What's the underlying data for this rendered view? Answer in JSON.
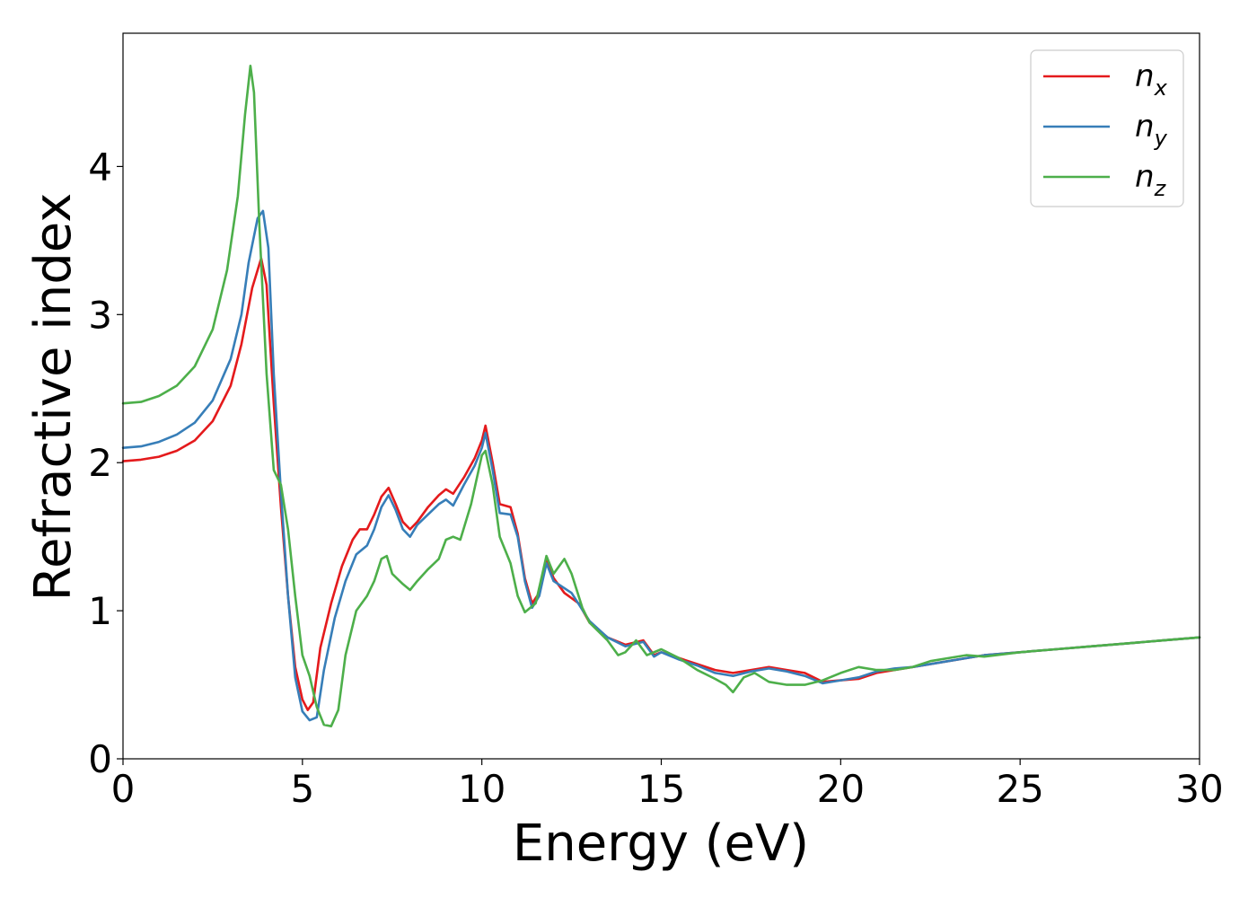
{
  "chart_data": {
    "type": "line",
    "title": "",
    "xlabel": "Energy (eV)",
    "ylabel": "Refractive index",
    "xlim": [
      0,
      30
    ],
    "ylim": [
      0,
      4.9
    ],
    "xticks": [
      "0",
      "5",
      "10",
      "15",
      "20",
      "25",
      "30"
    ],
    "yticks": [
      "0",
      "1",
      "2",
      "3",
      "4"
    ],
    "grid": false,
    "legend_position": "top-right",
    "series": [
      {
        "name": "n_x",
        "legend_base": "n",
        "legend_sub": "x",
        "color": "#e41a1c",
        "points": [
          [
            0,
            2.01
          ],
          [
            0.5,
            2.02
          ],
          [
            1,
            2.04
          ],
          [
            1.5,
            2.08
          ],
          [
            2,
            2.15
          ],
          [
            2.5,
            2.28
          ],
          [
            3,
            2.52
          ],
          [
            3.3,
            2.8
          ],
          [
            3.6,
            3.18
          ],
          [
            3.85,
            3.38
          ],
          [
            4.0,
            3.2
          ],
          [
            4.2,
            2.4
          ],
          [
            4.4,
            1.7
          ],
          [
            4.6,
            1.1
          ],
          [
            4.8,
            0.62
          ],
          [
            5.0,
            0.4
          ],
          [
            5.15,
            0.33
          ],
          [
            5.3,
            0.38
          ],
          [
            5.5,
            0.75
          ],
          [
            5.8,
            1.05
          ],
          [
            6.1,
            1.3
          ],
          [
            6.4,
            1.48
          ],
          [
            6.6,
            1.55
          ],
          [
            6.8,
            1.55
          ],
          [
            7.0,
            1.65
          ],
          [
            7.2,
            1.77
          ],
          [
            7.4,
            1.83
          ],
          [
            7.6,
            1.72
          ],
          [
            7.8,
            1.6
          ],
          [
            8.0,
            1.55
          ],
          [
            8.2,
            1.6
          ],
          [
            8.5,
            1.7
          ],
          [
            8.8,
            1.78
          ],
          [
            9.0,
            1.82
          ],
          [
            9.2,
            1.79
          ],
          [
            9.5,
            1.9
          ],
          [
            9.8,
            2.03
          ],
          [
            10.0,
            2.15
          ],
          [
            10.1,
            2.25
          ],
          [
            10.3,
            2.0
          ],
          [
            10.5,
            1.72
          ],
          [
            10.8,
            1.7
          ],
          [
            11.0,
            1.52
          ],
          [
            11.2,
            1.22
          ],
          [
            11.4,
            1.05
          ],
          [
            11.6,
            1.12
          ],
          [
            11.8,
            1.35
          ],
          [
            12.0,
            1.22
          ],
          [
            12.3,
            1.12
          ],
          [
            12.7,
            1.05
          ],
          [
            13.0,
            0.92
          ],
          [
            13.5,
            0.82
          ],
          [
            14.0,
            0.77
          ],
          [
            14.5,
            0.8
          ],
          [
            14.8,
            0.7
          ],
          [
            15.0,
            0.72
          ],
          [
            15.5,
            0.68
          ],
          [
            16.0,
            0.64
          ],
          [
            16.5,
            0.6
          ],
          [
            17.0,
            0.58
          ],
          [
            17.5,
            0.6
          ],
          [
            18.0,
            0.62
          ],
          [
            18.5,
            0.6
          ],
          [
            19.0,
            0.58
          ],
          [
            19.5,
            0.52
          ],
          [
            20.0,
            0.53
          ],
          [
            20.5,
            0.54
          ],
          [
            21.0,
            0.58
          ],
          [
            21.5,
            0.6
          ],
          [
            22.0,
            0.62
          ],
          [
            23.0,
            0.66
          ],
          [
            24.0,
            0.7
          ],
          [
            25.0,
            0.72
          ],
          [
            26.0,
            0.74
          ],
          [
            27.0,
            0.76
          ],
          [
            28.0,
            0.78
          ],
          [
            29.0,
            0.8
          ],
          [
            30.0,
            0.82
          ]
        ]
      },
      {
        "name": "n_y",
        "legend_base": "n",
        "legend_sub": "y",
        "color": "#377eb8",
        "points": [
          [
            0,
            2.1
          ],
          [
            0.5,
            2.11
          ],
          [
            1,
            2.14
          ],
          [
            1.5,
            2.19
          ],
          [
            2,
            2.27
          ],
          [
            2.5,
            2.42
          ],
          [
            3,
            2.7
          ],
          [
            3.3,
            3.0
          ],
          [
            3.5,
            3.35
          ],
          [
            3.75,
            3.65
          ],
          [
            3.9,
            3.7
          ],
          [
            4.05,
            3.45
          ],
          [
            4.2,
            2.6
          ],
          [
            4.4,
            1.8
          ],
          [
            4.6,
            1.1
          ],
          [
            4.8,
            0.55
          ],
          [
            5.0,
            0.32
          ],
          [
            5.2,
            0.26
          ],
          [
            5.4,
            0.28
          ],
          [
            5.6,
            0.6
          ],
          [
            5.9,
            0.95
          ],
          [
            6.2,
            1.2
          ],
          [
            6.5,
            1.38
          ],
          [
            6.8,
            1.44
          ],
          [
            7.0,
            1.55
          ],
          [
            7.2,
            1.7
          ],
          [
            7.4,
            1.78
          ],
          [
            7.6,
            1.68
          ],
          [
            7.8,
            1.55
          ],
          [
            8.0,
            1.5
          ],
          [
            8.2,
            1.58
          ],
          [
            8.5,
            1.65
          ],
          [
            8.8,
            1.72
          ],
          [
            9.0,
            1.75
          ],
          [
            9.2,
            1.71
          ],
          [
            9.5,
            1.85
          ],
          [
            9.8,
            1.98
          ],
          [
            10.0,
            2.1
          ],
          [
            10.1,
            2.2
          ],
          [
            10.3,
            1.95
          ],
          [
            10.5,
            1.66
          ],
          [
            10.8,
            1.65
          ],
          [
            11.0,
            1.5
          ],
          [
            11.2,
            1.2
          ],
          [
            11.4,
            1.02
          ],
          [
            11.6,
            1.1
          ],
          [
            11.8,
            1.32
          ],
          [
            12.0,
            1.2
          ],
          [
            12.5,
            1.12
          ],
          [
            13.0,
            0.93
          ],
          [
            13.5,
            0.82
          ],
          [
            14.0,
            0.76
          ],
          [
            14.5,
            0.79
          ],
          [
            14.8,
            0.69
          ],
          [
            15.0,
            0.72
          ],
          [
            15.5,
            0.67
          ],
          [
            16.0,
            0.63
          ],
          [
            16.5,
            0.58
          ],
          [
            17.0,
            0.56
          ],
          [
            17.5,
            0.59
          ],
          [
            18.0,
            0.61
          ],
          [
            18.5,
            0.59
          ],
          [
            19.0,
            0.56
          ],
          [
            19.5,
            0.51
          ],
          [
            20.0,
            0.53
          ],
          [
            20.5,
            0.55
          ],
          [
            21.0,
            0.59
          ],
          [
            21.5,
            0.61
          ],
          [
            22.0,
            0.62
          ],
          [
            23.0,
            0.66
          ],
          [
            24.0,
            0.7
          ],
          [
            25.0,
            0.72
          ],
          [
            26.0,
            0.74
          ],
          [
            27.0,
            0.76
          ],
          [
            28.0,
            0.78
          ],
          [
            29.0,
            0.8
          ],
          [
            30.0,
            0.82
          ]
        ]
      },
      {
        "name": "n_z",
        "legend_base": "n",
        "legend_sub": "z",
        "color": "#4daf4a",
        "points": [
          [
            0,
            2.4
          ],
          [
            0.5,
            2.41
          ],
          [
            1,
            2.45
          ],
          [
            1.5,
            2.52
          ],
          [
            2,
            2.65
          ],
          [
            2.5,
            2.9
          ],
          [
            2.9,
            3.3
          ],
          [
            3.2,
            3.8
          ],
          [
            3.4,
            4.35
          ],
          [
            3.55,
            4.68
          ],
          [
            3.65,
            4.5
          ],
          [
            3.8,
            3.6
          ],
          [
            4.0,
            2.6
          ],
          [
            4.2,
            1.95
          ],
          [
            4.4,
            1.85
          ],
          [
            4.6,
            1.55
          ],
          [
            4.8,
            1.1
          ],
          [
            5.0,
            0.7
          ],
          [
            5.2,
            0.56
          ],
          [
            5.4,
            0.35
          ],
          [
            5.6,
            0.23
          ],
          [
            5.8,
            0.22
          ],
          [
            6.0,
            0.33
          ],
          [
            6.2,
            0.7
          ],
          [
            6.5,
            1.0
          ],
          [
            6.8,
            1.1
          ],
          [
            7.0,
            1.2
          ],
          [
            7.2,
            1.35
          ],
          [
            7.35,
            1.37
          ],
          [
            7.5,
            1.25
          ],
          [
            7.8,
            1.18
          ],
          [
            8.0,
            1.14
          ],
          [
            8.2,
            1.2
          ],
          [
            8.5,
            1.28
          ],
          [
            8.8,
            1.35
          ],
          [
            9.0,
            1.48
          ],
          [
            9.2,
            1.5
          ],
          [
            9.4,
            1.48
          ],
          [
            9.7,
            1.72
          ],
          [
            10.0,
            2.05
          ],
          [
            10.1,
            2.08
          ],
          [
            10.3,
            1.85
          ],
          [
            10.5,
            1.5
          ],
          [
            10.8,
            1.32
          ],
          [
            11.0,
            1.1
          ],
          [
            11.2,
            0.99
          ],
          [
            11.5,
            1.05
          ],
          [
            11.8,
            1.37
          ],
          [
            12.0,
            1.25
          ],
          [
            12.3,
            1.35
          ],
          [
            12.5,
            1.25
          ],
          [
            12.8,
            1.02
          ],
          [
            13.0,
            0.92
          ],
          [
            13.5,
            0.8
          ],
          [
            13.8,
            0.7
          ],
          [
            14.0,
            0.72
          ],
          [
            14.3,
            0.8
          ],
          [
            14.6,
            0.7
          ],
          [
            15.0,
            0.74
          ],
          [
            15.5,
            0.68
          ],
          [
            16.0,
            0.6
          ],
          [
            16.5,
            0.54
          ],
          [
            16.8,
            0.5
          ],
          [
            17.0,
            0.45
          ],
          [
            17.3,
            0.55
          ],
          [
            17.6,
            0.58
          ],
          [
            18.0,
            0.52
          ],
          [
            18.5,
            0.5
          ],
          [
            19.0,
            0.5
          ],
          [
            19.5,
            0.53
          ],
          [
            20.0,
            0.58
          ],
          [
            20.5,
            0.62
          ],
          [
            21.0,
            0.6
          ],
          [
            21.5,
            0.6
          ],
          [
            22.0,
            0.62
          ],
          [
            22.5,
            0.66
          ],
          [
            23.0,
            0.68
          ],
          [
            23.5,
            0.7
          ],
          [
            24.0,
            0.69
          ],
          [
            25.0,
            0.72
          ],
          [
            26.0,
            0.74
          ],
          [
            27.0,
            0.76
          ],
          [
            28.0,
            0.78
          ],
          [
            29.0,
            0.8
          ],
          [
            30.0,
            0.82
          ]
        ]
      }
    ]
  }
}
